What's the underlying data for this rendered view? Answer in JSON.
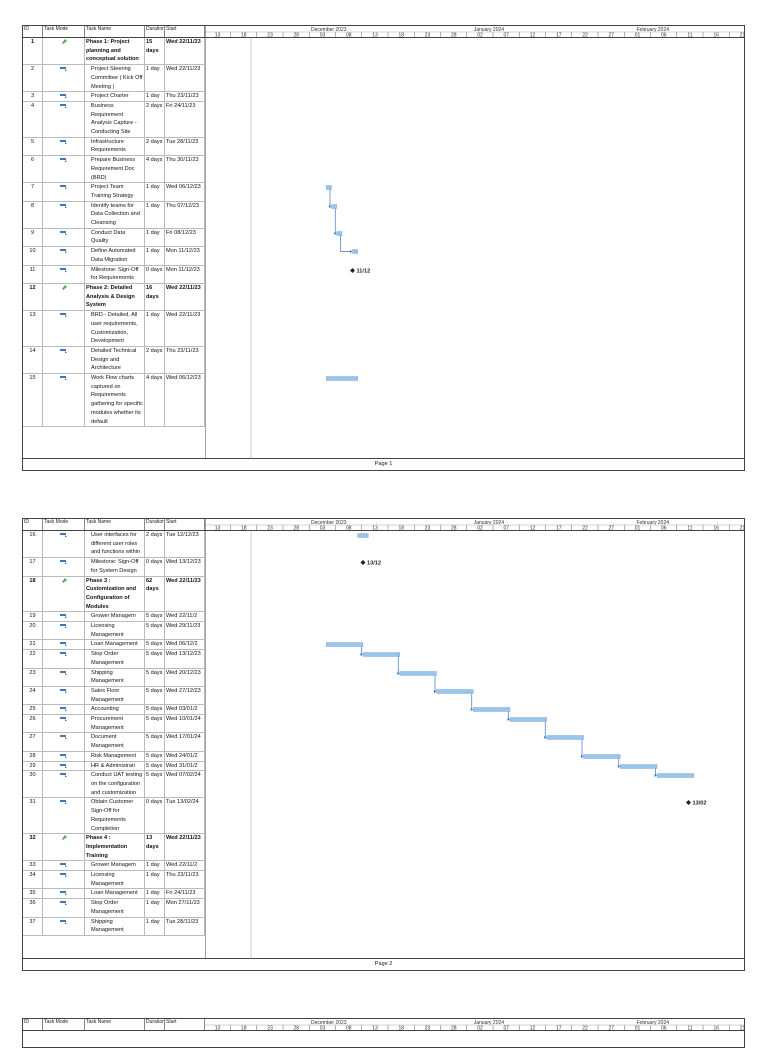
{
  "header": {
    "columns": [
      "ID",
      "Task Mode",
      "Task Name",
      "Duration",
      "Start"
    ],
    "months": [
      "December 2023",
      "January 2024",
      "February 2024"
    ],
    "days": [
      "13",
      "18",
      "23",
      "28",
      "03",
      "08",
      "13",
      "18",
      "23",
      "28",
      "02",
      "07",
      "12",
      "17",
      "22",
      "27",
      "01",
      "06",
      "11",
      "16",
      "21"
    ]
  },
  "pages": [
    {
      "footer": "Page 1",
      "tasks": [
        {
          "id": "1",
          "name": "Phase 1: Project planning and conceptual solution",
          "duration": "15 days",
          "start": "Wed 22/11/23",
          "summary": true
        },
        {
          "id": "2",
          "name": "Project Steering Committee ( Kick Off Meeting )",
          "duration": "1 day",
          "start": "Wed 22/11/23"
        },
        {
          "id": "3",
          "name": "Project Charter",
          "duration": "1 day",
          "start": "Thu 23/11/23"
        },
        {
          "id": "4",
          "name": "Business Requirement Analysis Capture -Conducting Site",
          "duration": "2 days",
          "start": "Fri 24/11/23"
        },
        {
          "id": "5",
          "name": "Infrastructure Requirements",
          "duration": "2 days",
          "start": "Tue 28/11/23"
        },
        {
          "id": "6",
          "name": "Prepare Business Requirement Doc (BRD)",
          "duration": "4 days",
          "start": "Thu 30/11/23"
        },
        {
          "id": "7",
          "name": "Project Team Training Strategy",
          "duration": "1 day",
          "start": "Wed 06/12/23"
        },
        {
          "id": "8",
          "name": "Identify teams for Data Collection and Cleansing",
          "duration": "1 day",
          "start": "Thu 07/12/23"
        },
        {
          "id": "9",
          "name": "Conduct Data Quality",
          "duration": "1 day",
          "start": "Fri 08/12/23"
        },
        {
          "id": "10",
          "name": "Define Automated Data Migration",
          "duration": "1 day",
          "start": "Mon 11/12/23"
        },
        {
          "id": "11",
          "name": "Milestone: Sign-Off for Requirements",
          "duration": "0 days",
          "start": "Mon 11/12/23",
          "milestone_label": "11/12"
        },
        {
          "id": "12",
          "name": "Phase 2: Detailed Analysis & Design System",
          "duration": "16 days",
          "start": "Wed 22/11/23",
          "summary": true
        },
        {
          "id": "13",
          "name": "BRD - Detailed, All user requirements, Customization, Development",
          "duration": "1 day",
          "start": "Wed 22/11/23"
        },
        {
          "id": "14",
          "name": "Detailed Technical Design and Architecture",
          "duration": "2 days",
          "start": "Thu 23/11/23"
        },
        {
          "id": "15",
          "name": "Work Flow charts captured on Requirements gathering for specific modules whether its default",
          "duration": "4 days",
          "start": "Wed 06/12/23"
        }
      ]
    },
    {
      "footer": "Page 2",
      "tasks": [
        {
          "id": "16",
          "name": "User interfaces for different user roles and functions within",
          "duration": "2 days",
          "start": "Tue 12/12/23"
        },
        {
          "id": "17",
          "name": "Milestone: Sign-Off for System Design",
          "duration": "0 days",
          "start": "Wed 13/12/23",
          "milestone_label": "13/12"
        },
        {
          "id": "18",
          "name": "Phase 3 : Customization and Configuration of Modules",
          "duration": "62 days",
          "start": "Wed 22/11/23",
          "summary": true
        },
        {
          "id": "19",
          "name": "Grower Managem",
          "duration": "5 days",
          "start": "Wed 22/11/2"
        },
        {
          "id": "20",
          "name": "Licensing Management",
          "duration": "5 days",
          "start": "Wed 29/11/23"
        },
        {
          "id": "21",
          "name": "Loan Management",
          "duration": "5 days",
          "start": "Wed 06/12/2"
        },
        {
          "id": "22",
          "name": "Stop Order Management",
          "duration": "5 days",
          "start": "Wed 13/12/23"
        },
        {
          "id": "23",
          "name": "Shipping Management",
          "duration": "5 days",
          "start": "Wed 20/12/23"
        },
        {
          "id": "24",
          "name": "Sales Floor Management",
          "duration": "5 days",
          "start": "Wed 27/12/23"
        },
        {
          "id": "25",
          "name": "Accounting",
          "duration": "5 days",
          "start": "Wed 03/01/2"
        },
        {
          "id": "26",
          "name": "Procurement Management",
          "duration": "5 days",
          "start": "Wed 10/01/24"
        },
        {
          "id": "27",
          "name": "Document Management",
          "duration": "5 days",
          "start": "Wed 17/01/24"
        },
        {
          "id": "28",
          "name": "Risk Management",
          "duration": "5 days",
          "start": "Wed 24/01/2"
        },
        {
          "id": "29",
          "name": "HR & Administrati",
          "duration": "5 days",
          "start": "Wed 31/01/2"
        },
        {
          "id": "30",
          "name": "Conduct UAT testing on the configuration and customization",
          "duration": "5 days",
          "start": "Wed 07/02/24"
        },
        {
          "id": "31",
          "name": "Obtain Customer Sign-Off for Requirements Completion",
          "duration": "0 days",
          "start": "Tue 13/02/24",
          "milestone_label": "13/02"
        },
        {
          "id": "32",
          "name": "Phase 4 : Implementation Training",
          "duration": "13 days",
          "start": "Wed 22/11/23",
          "summary": true
        },
        {
          "id": "33",
          "name": "Grower Managem",
          "duration": "1 day",
          "start": "Wed 22/11/2"
        },
        {
          "id": "34",
          "name": "Licensing Management",
          "duration": "1 day",
          "start": "Thu 23/11/23"
        },
        {
          "id": "35",
          "name": "Loan Management",
          "duration": "1 day",
          "start": "Fri 24/11/23"
        },
        {
          "id": "36",
          "name": "Stop Order Management",
          "duration": "1 day",
          "start": "Mon 27/11/23"
        },
        {
          "id": "37",
          "name": "Shipping Management",
          "duration": "1 day",
          "start": "Tue 28/11/23"
        }
      ]
    }
  ]
}
